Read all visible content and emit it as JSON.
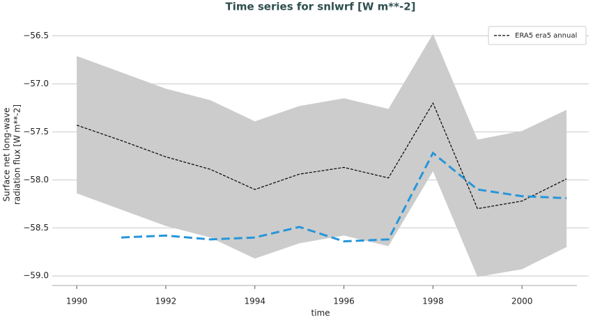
{
  "chart_data": {
    "type": "line",
    "title": "Time series for snlwrf [W m**-2]",
    "xlabel": "time",
    "ylabel": [
      "Surface net long-wave",
      "radiation flux [W m**-2]"
    ],
    "x": [
      1990,
      1991,
      1992,
      1993,
      1994,
      1995,
      1996,
      1997,
      1998,
      1999,
      2000,
      2001
    ],
    "band": {
      "color": "#cccccc",
      "upper": [
        -56.71,
        -56.88,
        -57.05,
        -57.17,
        -57.39,
        -57.23,
        -57.15,
        -57.26,
        -56.48,
        -57.58,
        -57.49,
        -57.27
      ],
      "lower": [
        -58.14,
        -58.31,
        -58.48,
        -58.6,
        -58.82,
        -58.66,
        -58.58,
        -58.69,
        -57.91,
        -59.01,
        -58.93,
        -58.7
      ]
    },
    "series": [
      {
        "name": "ERA5 era5 annual",
        "color": "#000000",
        "dash": "4 2",
        "width": 1.2,
        "values": [
          -57.43,
          -57.59,
          -57.76,
          -57.89,
          -58.1,
          -57.94,
          -57.87,
          -57.98,
          -57.2,
          -58.3,
          -58.22,
          -57.99
        ]
      },
      {
        "color": "#2596d9",
        "dash": "12 6",
        "width": 3,
        "values": [
          null,
          -58.6,
          -58.58,
          -58.62,
          -58.6,
          -58.49,
          -58.64,
          -58.62,
          -57.72,
          -58.1,
          -58.17,
          -58.19
        ]
      }
    ],
    "xlim": [
      1989.45,
      2001.5
    ],
    "ylim": [
      -59.1,
      -56.38
    ],
    "xticks": [
      1990,
      1992,
      1994,
      1996,
      1998,
      2000
    ],
    "yticks": [
      {
        "value": -56.5,
        "label": "−56.5"
      },
      {
        "value": -57.0,
        "label": "−57.0"
      },
      {
        "value": -57.5,
        "label": "−57.5"
      },
      {
        "value": -58.0,
        "label": "−58.0"
      },
      {
        "value": -58.5,
        "label": "−58.5"
      },
      {
        "value": -59.0,
        "label": "−59.0"
      }
    ],
    "grid": true,
    "legend": "upper right"
  }
}
